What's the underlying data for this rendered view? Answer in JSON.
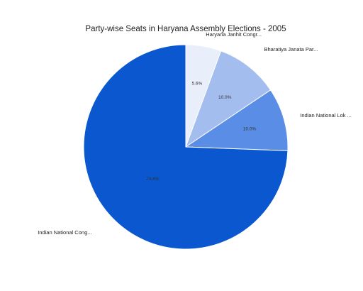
{
  "chart_data": {
    "type": "pie",
    "title": "Party-wise Seats in Haryana Assembly Elections - 2005",
    "categories": [
      "Haryana Janhit Congr...",
      "Bharatiya Janata Par...",
      "Indian National Lok ...",
      "Indian National Cong..."
    ],
    "values": [
      5.6,
      10.0,
      10.0,
      74.4
    ],
    "value_labels": [
      "5.6%",
      "10.0%",
      "10.0%",
      "74.4%"
    ],
    "colors": [
      "#e8eefa",
      "#a3bdef",
      "#5a8ee6",
      "#0b57d0"
    ],
    "start_angle": "12 o'clock",
    "direction": "clockwise",
    "legend": "none"
  }
}
